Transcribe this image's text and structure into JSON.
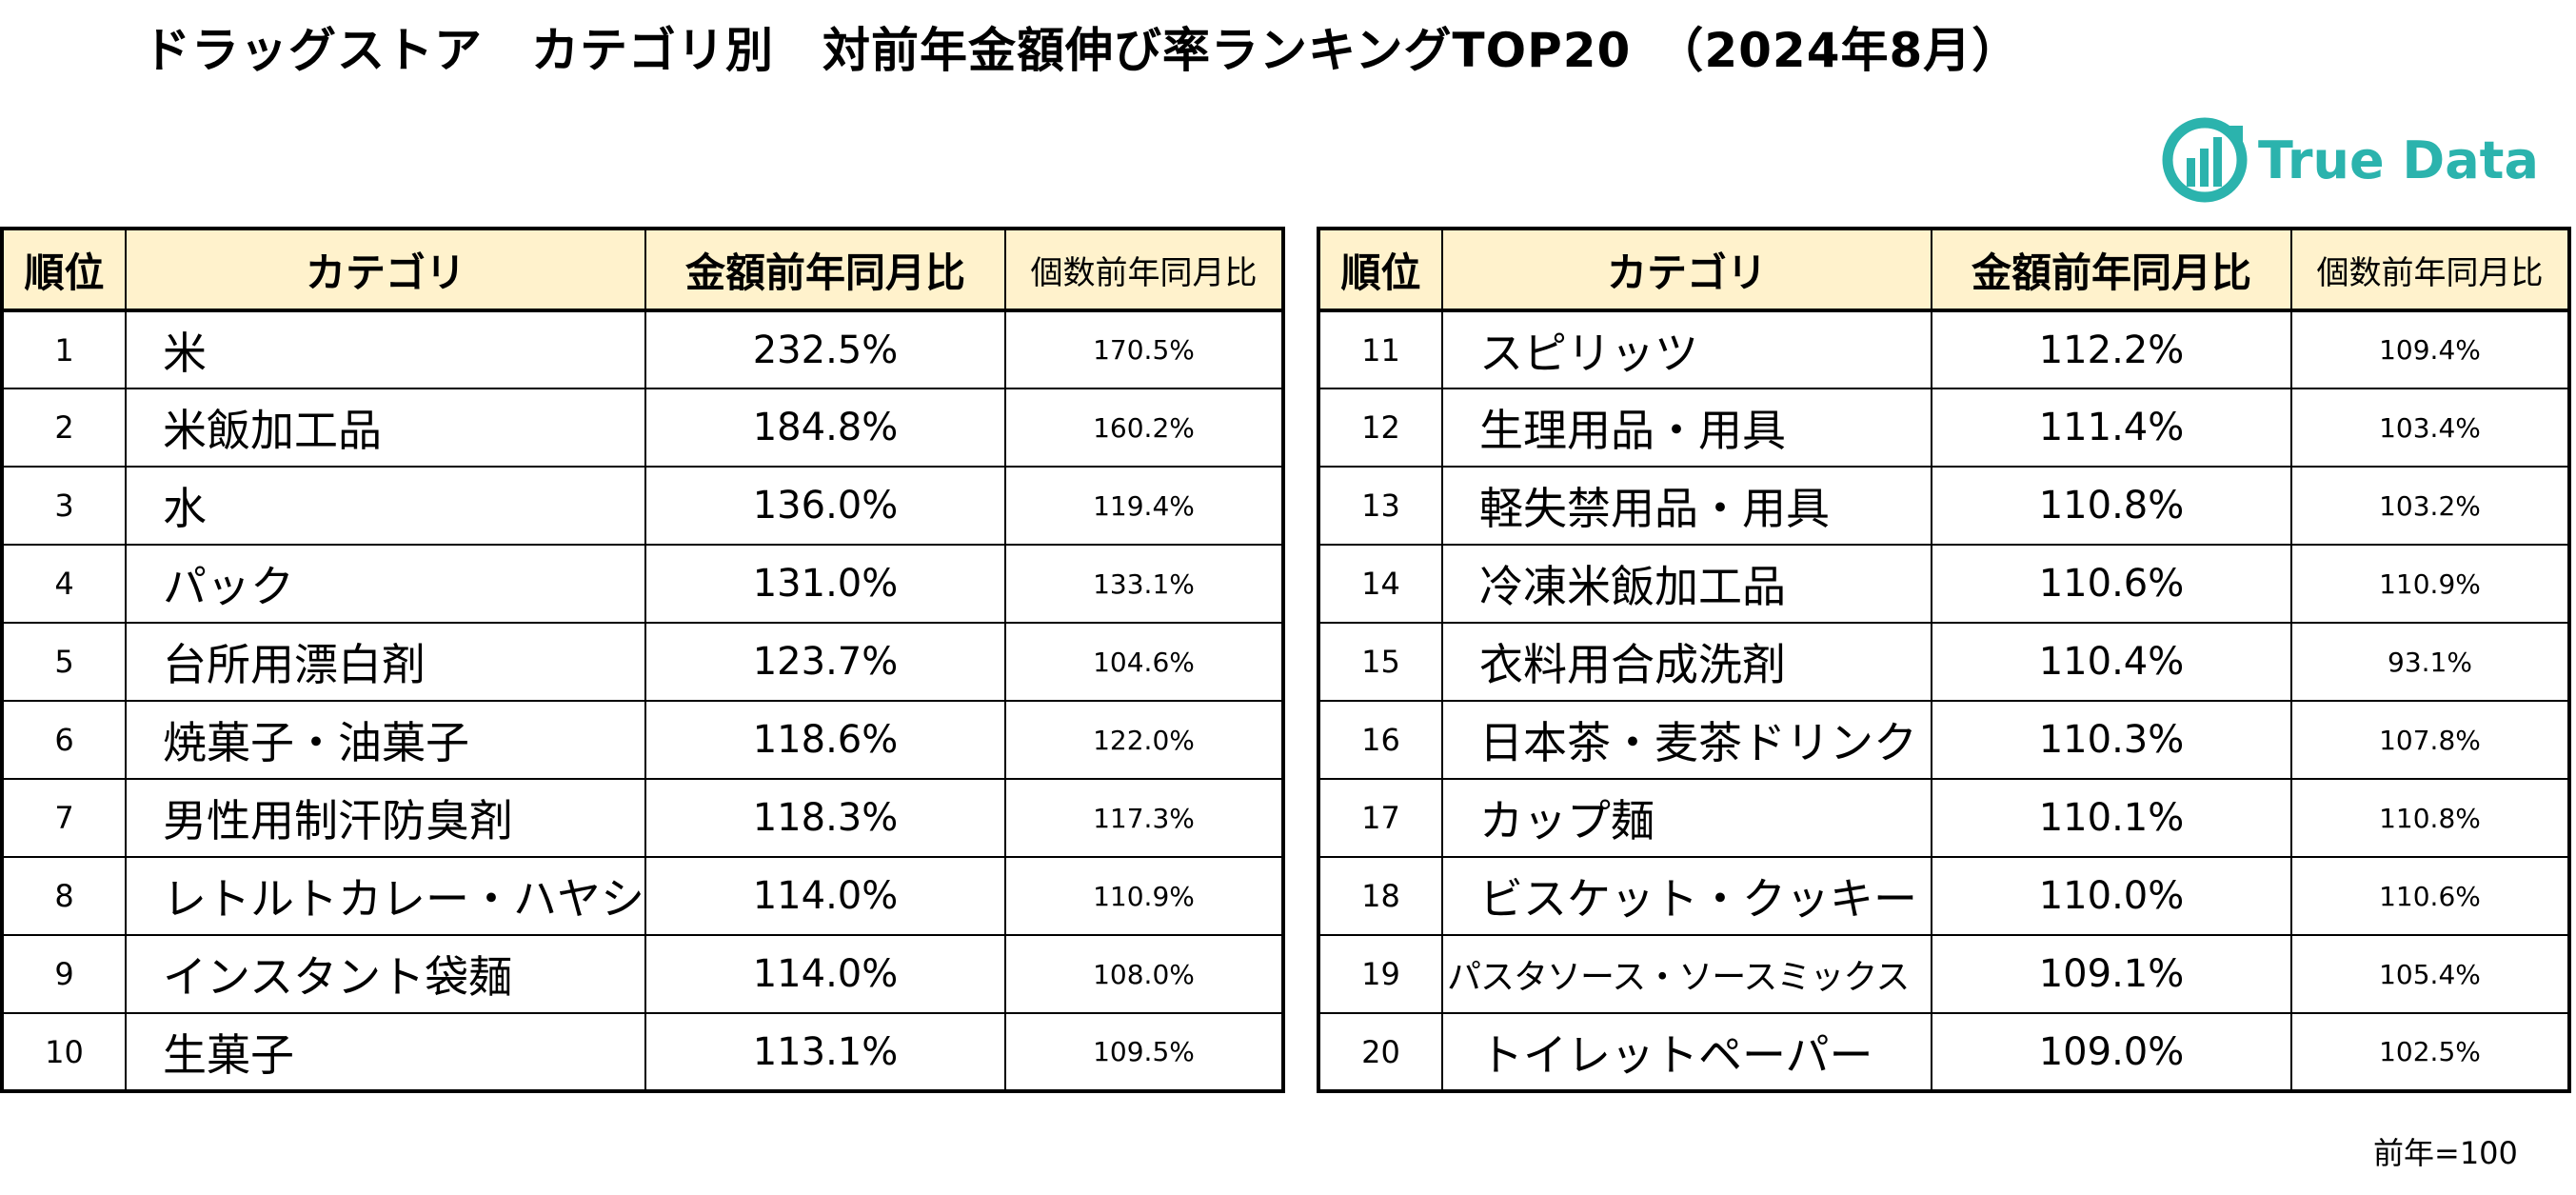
{
  "title": "ドラッグストア　カテゴリ別　対前年金額伸び率ランキングTOP20　（2024年8月）",
  "logo": {
    "text": "True Data",
    "icon": "truedata-logo-icon",
    "color": "#2bb3ad"
  },
  "table_header": {
    "rank": "順位",
    "category": "カテゴリ",
    "amount_yoy": "金額前年同月比",
    "count_yoy": "個数前年同月比",
    "header_bg": "#fff2cc"
  },
  "left_rows": [
    {
      "rank": "1",
      "category": "米",
      "amount": "232.5%",
      "count": "170.5%"
    },
    {
      "rank": "2",
      "category": "米飯加工品",
      "amount": "184.8%",
      "count": "160.2%"
    },
    {
      "rank": "3",
      "category": "水",
      "amount": "136.0%",
      "count": "119.4%"
    },
    {
      "rank": "4",
      "category": "パック",
      "amount": "131.0%",
      "count": "133.1%"
    },
    {
      "rank": "5",
      "category": "台所用漂白剤",
      "amount": "123.7%",
      "count": "104.6%"
    },
    {
      "rank": "6",
      "category": "焼菓子・油菓子",
      "amount": "118.6%",
      "count": "122.0%"
    },
    {
      "rank": "7",
      "category": "男性用制汗防臭剤",
      "amount": "118.3%",
      "count": "117.3%"
    },
    {
      "rank": "8",
      "category": "レトルトカレー・ハヤシ",
      "amount": "114.0%",
      "count": "110.9%"
    },
    {
      "rank": "9",
      "category": "インスタント袋麺",
      "amount": "114.0%",
      "count": "108.0%"
    },
    {
      "rank": "10",
      "category": "生菓子",
      "amount": "113.1%",
      "count": "109.5%"
    }
  ],
  "right_rows": [
    {
      "rank": "11",
      "category": "スピリッツ",
      "amount": "112.2%",
      "count": "109.4%"
    },
    {
      "rank": "12",
      "category": "生理用品・用具",
      "amount": "111.4%",
      "count": "103.4%"
    },
    {
      "rank": "13",
      "category": "軽失禁用品・用具",
      "amount": "110.8%",
      "count": "103.2%"
    },
    {
      "rank": "14",
      "category": "冷凍米飯加工品",
      "amount": "110.6%",
      "count": "110.9%"
    },
    {
      "rank": "15",
      "category": "衣料用合成洗剤",
      "amount": "110.4%",
      "count": "93.1%"
    },
    {
      "rank": "16",
      "category": "日本茶・麦茶ドリンク",
      "amount": "110.3%",
      "count": "107.8%"
    },
    {
      "rank": "17",
      "category": "カップ麺",
      "amount": "110.1%",
      "count": "110.8%"
    },
    {
      "rank": "18",
      "category": "ビスケット・クッキー",
      "amount": "110.0%",
      "count": "110.6%"
    },
    {
      "rank": "19",
      "category": "パスタソース・ソースミックス",
      "amount": "109.1%",
      "count": "105.4%"
    },
    {
      "rank": "20",
      "category": "トイレットペーパー",
      "amount": "109.0%",
      "count": "102.5%"
    }
  ],
  "note": "前年=100"
}
